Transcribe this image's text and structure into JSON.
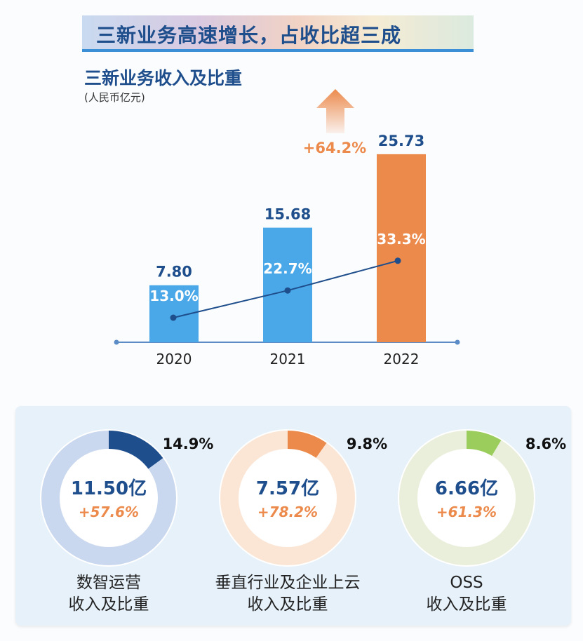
{
  "banner_title": "三新业务高速增长，占收比超三成",
  "chart_data": {
    "type": "bar",
    "title": "三新业务收入及比重",
    "unit": "(人民币亿元)",
    "categories": [
      "2020",
      "2021",
      "2022"
    ],
    "values": [
      7.8,
      15.68,
      25.73
    ],
    "value_labels": [
      "7.80",
      "15.68",
      "25.73"
    ],
    "bar_colors": [
      "#4aa8e8",
      "#4aa8e8",
      "#ec8a4c"
    ],
    "ratio_series": {
      "values": [
        13.0,
        22.7,
        33.3
      ],
      "labels": [
        "13.0%",
        "22.7%",
        "33.3%"
      ],
      "color": "#1f4e8c"
    },
    "growth_annotation": "+64.2%",
    "growth_color": "#ec8a4c"
  },
  "donuts": [
    {
      "share": 14.9,
      "share_label": "14.9%",
      "value": "11.50亿",
      "growth": "+57.6%",
      "label_line1": "数智运营",
      "label_line2": "收入及比重",
      "color": "#1f4e8c",
      "track": "#c9d8ee"
    },
    {
      "share": 9.8,
      "share_label": "9.8%",
      "value": "7.57亿",
      "growth": "+78.2%",
      "label_line1": "垂直行业及企业上云",
      "label_line2": "收入及比重",
      "color": "#ec8a4c",
      "track": "#fbe6d6"
    },
    {
      "share": 8.6,
      "share_label": "8.6%",
      "value": "6.66亿",
      "growth": "+61.3%",
      "label_line1": "OSS",
      "label_line2": "收入及比重",
      "color": "#9acd5c",
      "track": "#eaefdc"
    }
  ]
}
